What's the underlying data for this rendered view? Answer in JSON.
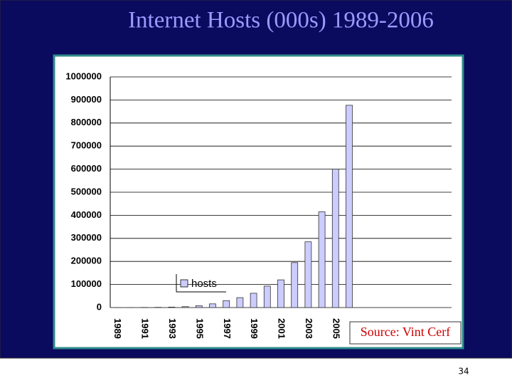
{
  "chart_data": {
    "type": "bar",
    "title": "Internet Hosts (000s) 1989-2006",
    "categories": [
      "1989",
      null,
      "1991",
      null,
      "1993",
      null,
      "1995",
      null,
      "1997",
      null,
      "1999",
      null,
      "2001",
      null,
      "2003",
      null,
      "2005",
      null,
      null,
      null,
      null,
      null,
      null,
      null,
      null
    ],
    "series": [
      {
        "name": "hosts",
        "color": "#ccccff",
        "values": [
          100,
          300,
          600,
          1000,
          2000,
          4000,
          8000,
          16000,
          30000,
          43000,
          62000,
          93000,
          120000,
          195000,
          285000,
          415000,
          600000,
          877000,
          null,
          null,
          null,
          null,
          null,
          null,
          null
        ]
      }
    ],
    "ylim": [
      0,
      1000000
    ],
    "yticks": [
      0,
      100000,
      200000,
      300000,
      400000,
      500000,
      600000,
      700000,
      800000,
      900000,
      1000000
    ],
    "grid": true,
    "annotation": "Source: Vint Cerf"
  },
  "page_number": "34"
}
